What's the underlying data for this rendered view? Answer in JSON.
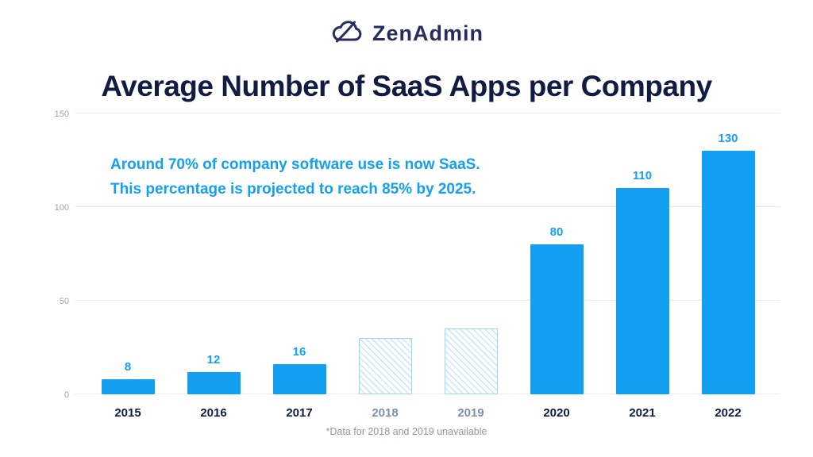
{
  "logo": {
    "text": "ZenAdmin"
  },
  "title": "Average Number of SaaS Apps per Company",
  "annotation": {
    "line1": "Around 70% of company software use is now SaaS.",
    "line2": "This percentage is projected to reach 85% by 2025."
  },
  "footnote": "*Data for 2018 and 2019 unavailable",
  "colors": {
    "bar": "#14a0f2",
    "navy": "#111c44",
    "logo_navy": "#262c5e",
    "grid": "#e7eaf0",
    "tick": "#9aa3b2",
    "muted_year": "#7d90ad",
    "hatch_line": "#c9e8fc",
    "hatch_border": "#9ed6f9",
    "footnote": "#8d97a9"
  },
  "chart_data": {
    "type": "bar",
    "title": "Average Number of SaaS Apps per Company",
    "categories": [
      "2015",
      "2016",
      "2017",
      "2018",
      "2019",
      "2020",
      "2021",
      "2022"
    ],
    "values": [
      8,
      12,
      16,
      30,
      35,
      80,
      110,
      130
    ],
    "data_labels": [
      "8",
      "12",
      "16",
      "",
      "",
      "80",
      "110",
      "130"
    ],
    "unavailable_categories": [
      "2018",
      "2019"
    ],
    "xlabel": "",
    "ylabel": "",
    "yticks": [
      0,
      50,
      100,
      150
    ],
    "ylim": [
      0,
      150
    ],
    "grid": true,
    "legend": "none",
    "bar_style_note": "2018 and 2019 shown as light-blue diagonal-hatched outline bars (values estimated from pixel height; no data labels)"
  }
}
